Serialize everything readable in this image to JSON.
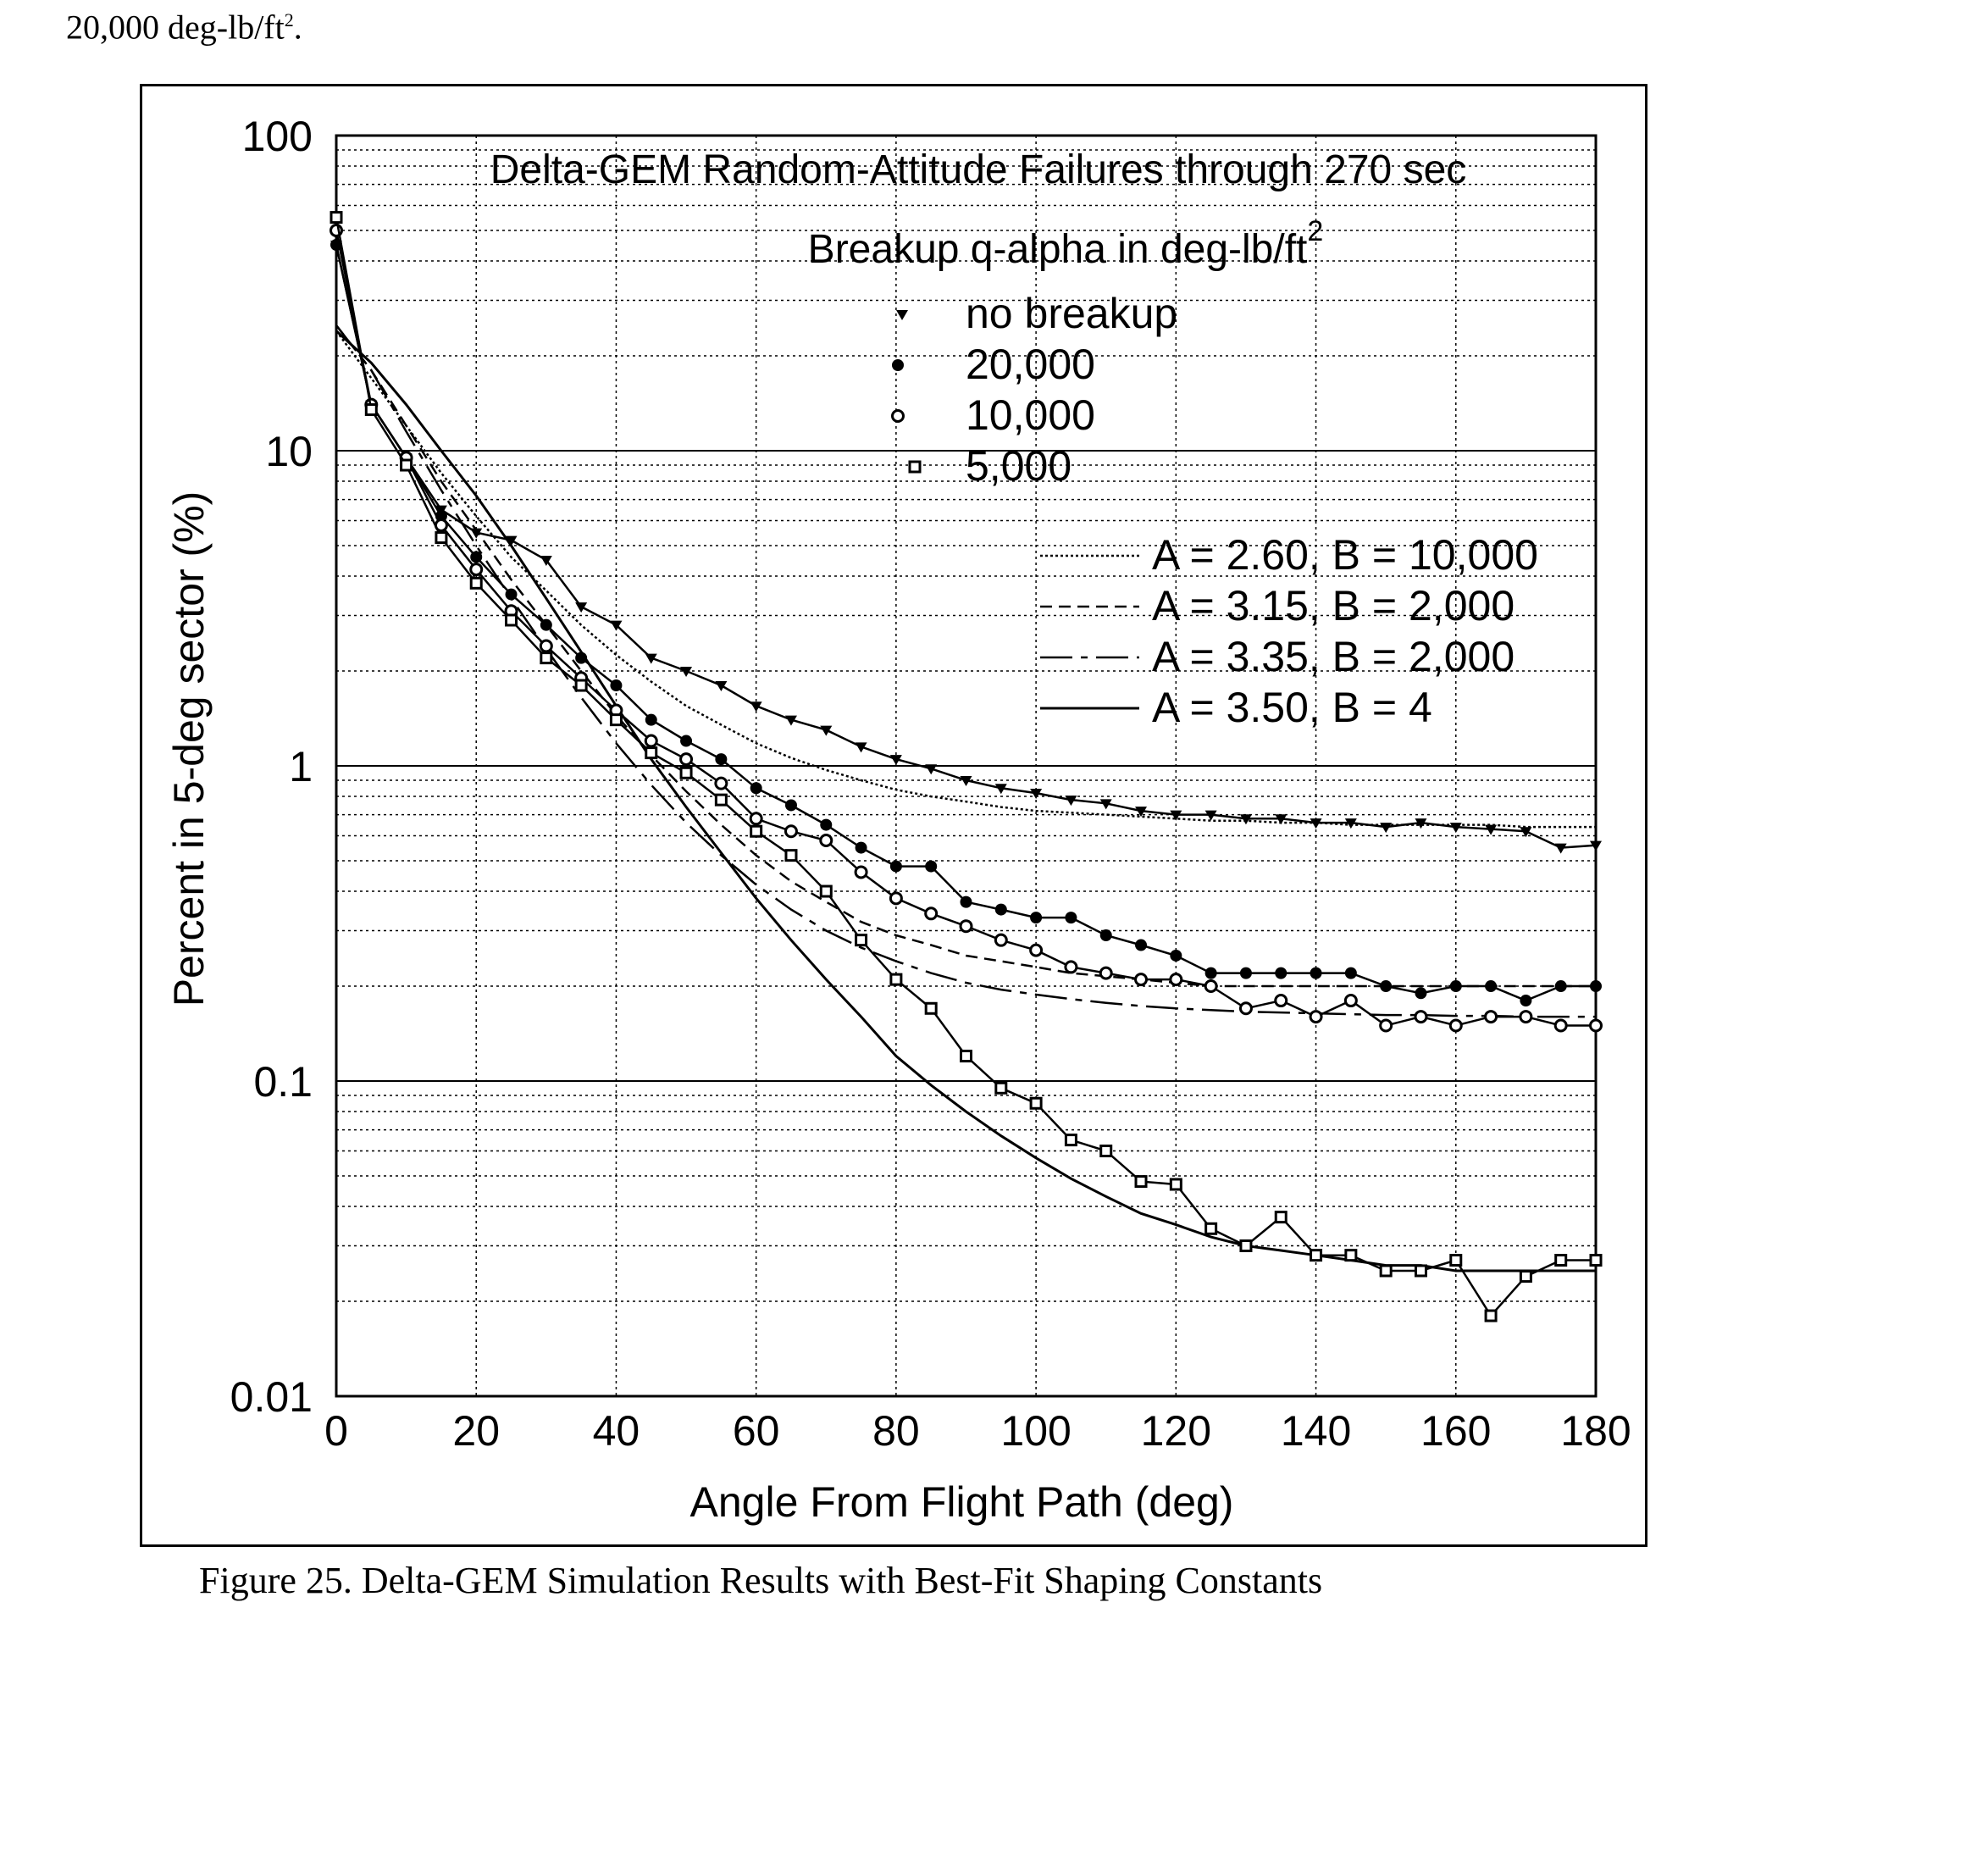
{
  "page": {
    "top_text": "20,000 deg-lb/ft",
    "top_text_sup": "2",
    "top_text_suffix": ".",
    "caption": "Figure 25. Delta-GEM Simulation Results with Best-Fit Shaping Constants"
  },
  "chart_data": {
    "type": "line",
    "title": "Delta-GEM Random-Attitude Failures through 270 sec",
    "subtitle": "Breakup q-alpha in deg-lb/ft",
    "subtitle_sup": "2",
    "xlabel": "Angle From Flight Path (deg)",
    "ylabel": "Percent in 5-deg sector (%)",
    "xlim": [
      0,
      180
    ],
    "ylim": [
      0.01,
      100
    ],
    "yscale": "log",
    "grid": true,
    "x_ticks": [
      0,
      20,
      40,
      60,
      80,
      100,
      120,
      140,
      160,
      180
    ],
    "x_tick_labels": [
      "0",
      "20",
      "40",
      "60",
      "80",
      "100",
      "120",
      "140",
      "160",
      "180"
    ],
    "y_ticks": [
      0.01,
      0.1,
      1,
      10,
      100
    ],
    "y_tick_labels": [
      "0.01",
      "0.1",
      "1",
      "10",
      "100"
    ],
    "legend_placement": "top-right",
    "x": [
      0,
      5,
      10,
      15,
      20,
      25,
      30,
      35,
      40,
      45,
      50,
      55,
      60,
      65,
      70,
      75,
      80,
      85,
      90,
      95,
      100,
      105,
      110,
      115,
      120,
      125,
      130,
      135,
      140,
      145,
      150,
      155,
      160,
      165,
      170,
      175,
      180
    ],
    "series": [
      {
        "name": "no breakup",
        "marker": "triangle-down",
        "values": [
          45,
          14,
          9.5,
          6.5,
          5.5,
          5.2,
          4.5,
          3.2,
          2.8,
          2.2,
          2.0,
          1.8,
          1.55,
          1.4,
          1.3,
          1.15,
          1.05,
          0.98,
          0.9,
          0.85,
          0.82,
          0.78,
          0.76,
          0.72,
          0.7,
          0.7,
          0.68,
          0.68,
          0.66,
          0.66,
          0.64,
          0.66,
          0.64,
          0.63,
          0.62,
          0.55,
          0.56
        ]
      },
      {
        "name": "20,000",
        "marker": "filled-circle",
        "values": [
          45,
          14,
          9.5,
          6.2,
          4.6,
          3.5,
          2.8,
          2.2,
          1.8,
          1.4,
          1.2,
          1.05,
          0.85,
          0.75,
          0.65,
          0.55,
          0.48,
          0.48,
          0.37,
          0.35,
          0.33,
          0.33,
          0.29,
          0.27,
          0.25,
          0.22,
          0.22,
          0.22,
          0.22,
          0.22,
          0.2,
          0.19,
          0.2,
          0.2,
          0.18,
          0.2,
          0.2
        ]
      },
      {
        "name": "10,000",
        "marker": "open-circle",
        "values": [
          50,
          14,
          9.5,
          5.8,
          4.2,
          3.1,
          2.4,
          1.9,
          1.5,
          1.2,
          1.05,
          0.88,
          0.68,
          0.62,
          0.58,
          0.46,
          0.38,
          0.34,
          0.31,
          0.28,
          0.26,
          0.23,
          0.22,
          0.21,
          0.21,
          0.2,
          0.17,
          0.18,
          0.16,
          0.18,
          0.15,
          0.16,
          0.15,
          0.16,
          0.16,
          0.15,
          0.15
        ]
      },
      {
        "name": "5,000",
        "marker": "open-square",
        "values": [
          55,
          13.5,
          9.0,
          5.3,
          3.8,
          2.9,
          2.2,
          1.8,
          1.4,
          1.1,
          0.95,
          0.78,
          0.62,
          0.52,
          0.4,
          0.28,
          0.21,
          0.17,
          0.12,
          0.095,
          0.085,
          0.065,
          0.06,
          0.048,
          0.047,
          0.034,
          0.03,
          0.037,
          0.028,
          0.028,
          0.025,
          0.025,
          0.027,
          0.018,
          0.024,
          0.027,
          0.027
        ]
      }
    ],
    "fits": [
      {
        "name": "A = 2.60, B = 10,000",
        "style": "dotted",
        "values": [
          24,
          17,
          12,
          8.5,
          6.2,
          4.6,
          3.6,
          2.8,
          2.25,
          1.85,
          1.55,
          1.35,
          1.18,
          1.06,
          0.97,
          0.9,
          0.84,
          0.8,
          0.77,
          0.74,
          0.72,
          0.71,
          0.7,
          0.69,
          0.68,
          0.67,
          0.67,
          0.66,
          0.66,
          0.65,
          0.65,
          0.65,
          0.65,
          0.65,
          0.64,
          0.64,
          0.64
        ]
      },
      {
        "name": "A = 3.15, B = 2,000",
        "style": "short-dash",
        "values": [
          25,
          18,
          12,
          8.0,
          5.6,
          3.9,
          2.8,
          2.0,
          1.45,
          1.08,
          0.83,
          0.65,
          0.52,
          0.43,
          0.37,
          0.32,
          0.29,
          0.27,
          0.25,
          0.24,
          0.23,
          0.22,
          0.215,
          0.21,
          0.205,
          0.2,
          0.2,
          0.2,
          0.2,
          0.2,
          0.2,
          0.2,
          0.2,
          0.2,
          0.2,
          0.2,
          0.2
        ]
      },
      {
        "name": "A = 3.35, B = 2,000",
        "style": "long-dash",
        "values": [
          25,
          18,
          11.5,
          7.5,
          5.0,
          3.4,
          2.35,
          1.65,
          1.18,
          0.87,
          0.66,
          0.52,
          0.42,
          0.35,
          0.3,
          0.265,
          0.24,
          0.22,
          0.205,
          0.195,
          0.188,
          0.182,
          0.177,
          0.173,
          0.17,
          0.168,
          0.166,
          0.165,
          0.164,
          0.163,
          0.162,
          0.162,
          0.161,
          0.161,
          0.16,
          0.16,
          0.16
        ]
      },
      {
        "name": "A = 3.50, B = 4",
        "style": "solid",
        "values": [
          24,
          19,
          14,
          10,
          7.2,
          5.0,
          3.4,
          2.3,
          1.55,
          1.05,
          0.74,
          0.53,
          0.38,
          0.28,
          0.21,
          0.16,
          0.12,
          0.097,
          0.08,
          0.067,
          0.057,
          0.049,
          0.043,
          0.038,
          0.035,
          0.032,
          0.03,
          0.029,
          0.028,
          0.027,
          0.026,
          0.026,
          0.025,
          0.025,
          0.025,
          0.025,
          0.025
        ]
      }
    ]
  }
}
